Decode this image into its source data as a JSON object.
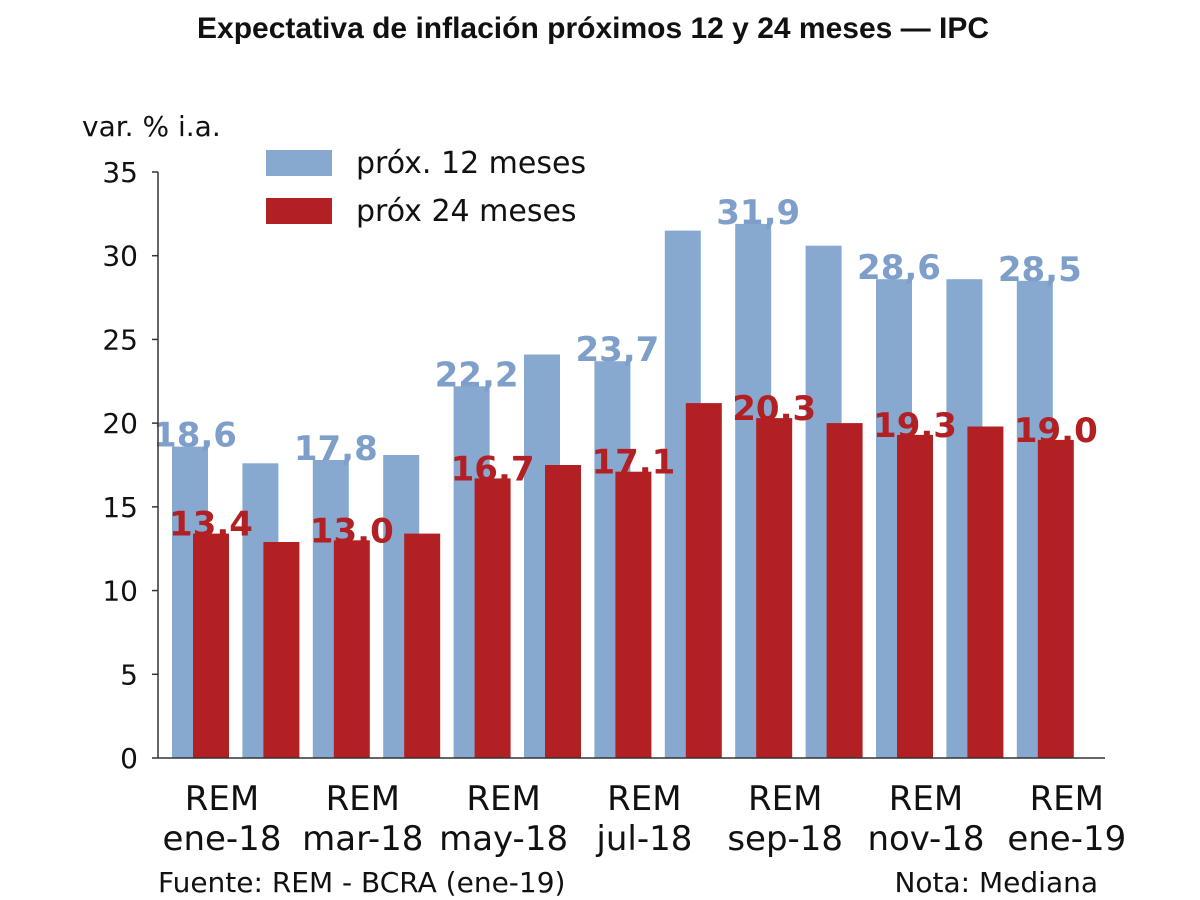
{
  "chart_data": {
    "type": "bar",
    "title": "Expectativa de inflación próximos 12 y 24 meses — IPC",
    "ylabel": "var. % i.a.",
    "ylim": [
      0,
      35
    ],
    "yticks": [
      "0",
      "5",
      "10",
      "15",
      "20",
      "25",
      "30",
      "35"
    ],
    "grid": false,
    "legend_position": "top-left",
    "x_labels": [
      [
        "REM",
        "ene-18"
      ],
      [
        "REM",
        "mar-18"
      ],
      [
        "REM",
        "may-18"
      ],
      [
        "REM",
        "jul-18"
      ],
      [
        "REM",
        "sep-18"
      ],
      [
        "REM",
        "nov-18"
      ],
      [
        "REM",
        "ene-19"
      ]
    ],
    "periods": 13,
    "series": [
      {
        "name": "próx. 12 meses",
        "color": "#87a9d0",
        "label_color": "#7f9fcb",
        "values": [
          18.6,
          17.6,
          17.8,
          18.1,
          22.2,
          24.1,
          23.7,
          31.5,
          31.9,
          30.6,
          28.6,
          28.6,
          28.5
        ],
        "labels": [
          "18,6",
          "",
          "17,8",
          "",
          "22,2",
          "",
          "23,7",
          "",
          "31,9",
          "",
          "28,6",
          "",
          "28,5"
        ]
      },
      {
        "name": "próx 24 meses",
        "color": "#b22023",
        "label_color": "#b22023",
        "values": [
          13.4,
          12.9,
          13.0,
          13.4,
          16.7,
          17.5,
          17.1,
          21.2,
          20.3,
          20.0,
          19.3,
          19.8,
          19.0
        ],
        "labels": [
          "13,4",
          "",
          "13,0",
          "",
          "16,7",
          "",
          "17,1",
          "",
          "20,3",
          "",
          "19,3",
          "",
          "19,0"
        ]
      }
    ]
  },
  "footer": {
    "source": "Fuente: REM - BCRA (ene-19)",
    "note": "Nota: Mediana"
  }
}
